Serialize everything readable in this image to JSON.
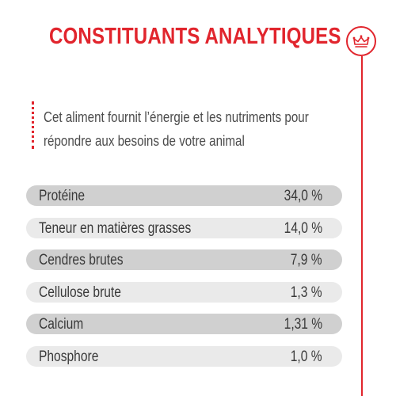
{
  "colors": {
    "accent": "#e1252d",
    "row_dark": "#d0d0d0",
    "row_light": "#eaeaea"
  },
  "title": "CONSTITUANTS ANALYTIQUES",
  "logo_icon": "crown-icon",
  "description": {
    "line1": "Cet aliment fournit l’énergie et les nutriments pour",
    "line2": "répondre aux besoins de votre animal"
  },
  "rows": [
    {
      "label": "Protéine",
      "value": "34,0 %"
    },
    {
      "label": "Teneur en matières grasses",
      "value": "14,0 %"
    },
    {
      "label": "Cendres brutes",
      "value": "7,9 %"
    },
    {
      "label": "Cellulose brute",
      "value": "1,3 %"
    },
    {
      "label": "Calcium",
      "value": "1,31 %"
    },
    {
      "label": "Phosphore",
      "value": "1,0 %"
    }
  ]
}
